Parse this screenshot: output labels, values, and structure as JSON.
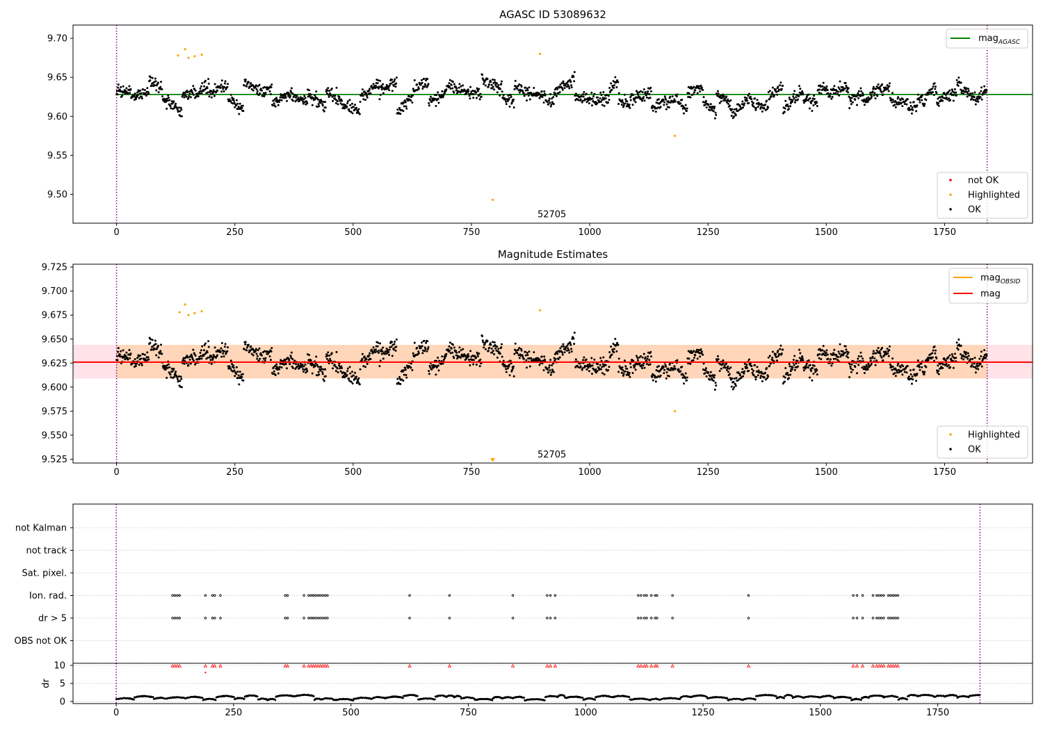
{
  "chart_data": [
    {
      "type": "scatter",
      "title": "AGASC ID 53089632",
      "xlim": [
        -92,
        1936
      ],
      "ylim": [
        9.463,
        9.717
      ],
      "xticks": [
        0,
        250,
        500,
        750,
        1000,
        1250,
        1500,
        1750,
        2000
      ],
      "yticks": [
        9.5,
        9.55,
        9.6,
        9.65,
        9.7
      ],
      "ytick_decimals": 2,
      "vlines": [
        0,
        1840
      ],
      "hline": {
        "name": "mag_AGASC",
        "y": 9.628,
        "x": [
          0,
          1940
        ],
        "color": "#008000"
      },
      "obsid_label": {
        "text": "52705",
        "x": 920,
        "y": 9.475
      },
      "legend_top": {
        "position": "top-right",
        "entries": [
          {
            "main": "mag",
            "sub": "AGASC",
            "color": "#008000",
            "kind": "line"
          }
        ]
      },
      "legend_bottom": {
        "position": "bottom-right",
        "entries": [
          {
            "label": "not OK",
            "color": "#ff0000",
            "kind": "dot"
          },
          {
            "label": "Highlighted",
            "color": "#ffa500",
            "kind": "dot"
          },
          {
            "label": "OK",
            "color": "#000000",
            "kind": "dot"
          }
        ]
      },
      "series": [
        {
          "name": "OK",
          "color": "#000000",
          "x_range": [
            0,
            1840
          ],
          "mean": 9.625,
          "count": 1840
        },
        {
          "name": "Highlighted",
          "color": "#ffa500",
          "points": [
            [
              130,
              9.678
            ],
            [
              145,
              9.686
            ],
            [
              152,
              9.675
            ],
            [
              165,
              9.677
            ],
            [
              180,
              9.679
            ],
            [
              895,
              9.68
            ],
            [
              1180,
              9.575
            ],
            [
              795,
              9.493
            ]
          ]
        },
        {
          "name": "not OK",
          "color": "#ff0000",
          "points": []
        }
      ]
    },
    {
      "type": "scatter",
      "title": "Magnitude Estimates",
      "xlim": [
        -92,
        1936
      ],
      "ylim": [
        9.521,
        9.728
      ],
      "xticks": [
        0,
        250,
        500,
        750,
        1000,
        1250,
        1500,
        1750,
        2000
      ],
      "yticks": [
        9.525,
        9.55,
        9.575,
        9.6,
        9.625,
        9.65,
        9.675,
        9.7,
        9.725
      ],
      "ytick_decimals": 3,
      "vlines": [
        0,
        1840
      ],
      "bands": [
        {
          "y": [
            9.609,
            9.644
          ],
          "color": "#ffc0cb",
          "opacity": 0.45
        },
        {
          "y": [
            9.609,
            9.644
          ],
          "x": [
            0,
            1840
          ],
          "color": "#ffa500",
          "opacity": 0.2
        }
      ],
      "lines": [
        {
          "name": "mag_OBSID",
          "y": 9.626,
          "x": [
            0,
            1840
          ],
          "color": "#ffa500"
        },
        {
          "name": "mag",
          "y": 9.626,
          "x": [
            -92,
            1940
          ],
          "color": "#ff0000"
        }
      ],
      "obsid_label": {
        "text": "52705",
        "x": 920,
        "y": 9.529
      },
      "legend_top": {
        "position": "top-right",
        "entries": [
          {
            "main": "mag",
            "sub": "OBSID",
            "color": "#ffa500",
            "kind": "line"
          },
          {
            "main": "mag",
            "sub": "",
            "color": "#ff0000",
            "kind": "line"
          }
        ]
      },
      "legend_bottom": {
        "position": "bottom-right",
        "entries": [
          {
            "label": "Highlighted",
            "color": "#ffa500",
            "kind": "dot"
          },
          {
            "label": "OK",
            "color": "#000000",
            "kind": "dot"
          }
        ]
      },
      "series": [
        {
          "name": "OK",
          "color": "#000000",
          "x_range": [
            0,
            1840
          ],
          "mean": 9.625,
          "count": 1840
        },
        {
          "name": "Highlighted",
          "color": "#ffa500",
          "points": [
            [
              133,
              9.678
            ],
            [
              145,
              9.686
            ],
            [
              152,
              9.675
            ],
            [
              165,
              9.677
            ],
            [
              180,
              9.679
            ],
            [
              895,
              9.68
            ],
            [
              1180,
              9.575
            ]
          ],
          "clipped_markers": [
            [
              795,
              9.524
            ]
          ]
        }
      ]
    },
    {
      "type": "scatter",
      "title": "",
      "xlim": [
        -92,
        1952
      ],
      "xticks": [
        0,
        250,
        500,
        750,
        1000,
        1250,
        1500,
        1750,
        2000
      ],
      "vlines": [
        0,
        1840
      ],
      "flag_rows": [
        "not Kalman",
        "not track",
        "Sat. pixel.",
        "Ion. rad.",
        "dr > 5",
        "OBS not OK"
      ],
      "flag_x": [
        120,
        125,
        130,
        135,
        190,
        205,
        210,
        222,
        360,
        365,
        400,
        410,
        415,
        420,
        425,
        430,
        435,
        440,
        445,
        450,
        625,
        710,
        845,
        918,
        925,
        935,
        1112,
        1118,
        1125,
        1130,
        1140,
        1148,
        1152,
        1185,
        1347,
        1570,
        1578,
        1590,
        1612,
        1620,
        1625,
        1630,
        1635,
        1645,
        1650,
        1655,
        1660,
        1665
      ],
      "flagged_rows": [
        "Ion. rad.",
        "dr > 5"
      ],
      "dr": {
        "ylabel": "dr",
        "ylim": [
          -0.5,
          10.5
        ],
        "yticks": [
          0,
          5,
          10
        ],
        "clip_value": 10,
        "outliers": [
          [
            190,
            8.0
          ]
        ],
        "outlier_color": "#ff0000",
        "ok_color": "#000000"
      }
    }
  ]
}
